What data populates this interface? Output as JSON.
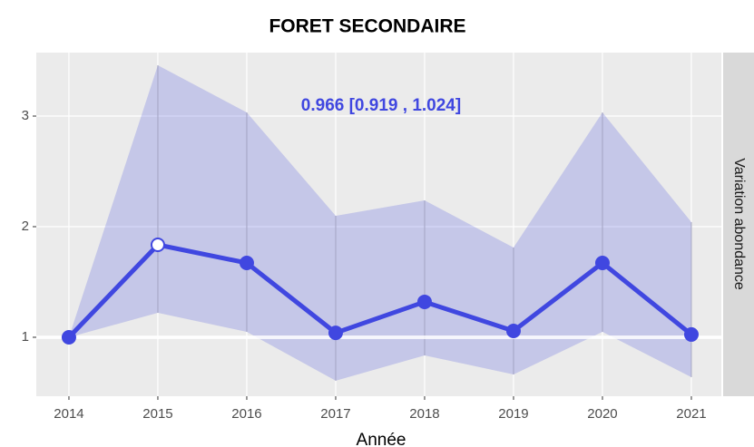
{
  "chart_data": {
    "type": "line",
    "title": "FORET SECONDAIRE",
    "xlabel": "Année",
    "strip_label": "Variation abondance",
    "annotation": "0.966  [0.919 , 1.024]",
    "x": [
      2014,
      2015,
      2016,
      2017,
      2018,
      2019,
      2020,
      2021
    ],
    "values": [
      1,
      1.836,
      1.672,
      1.04,
      1.32,
      1.057,
      1.672,
      1.025
    ],
    "lower": [
      1,
      1.221,
      1.049,
      0.607,
      0.836,
      0.664,
      1.049,
      0.639
    ],
    "upper": [
      1,
      3.459,
      3.033,
      2.098,
      2.238,
      1.811,
      3.033,
      2.041
    ],
    "color": "#4047e0",
    "marker_fills": [
      "#4047e0",
      "#ffffff",
      "#4047e0",
      "#4047e0",
      "#4047e0",
      "#4047e0",
      "#4047e0",
      "#4047e0"
    ],
    "hline": 1,
    "xlim": [
      2013.633,
      2021.337
    ],
    "xticks": [
      2014,
      2015,
      2016,
      2017,
      2018,
      2019,
      2020,
      2021
    ],
    "ylim": [
      0.467,
      3.574
    ],
    "yticks": [
      1,
      2,
      3
    ],
    "grid": true
  }
}
